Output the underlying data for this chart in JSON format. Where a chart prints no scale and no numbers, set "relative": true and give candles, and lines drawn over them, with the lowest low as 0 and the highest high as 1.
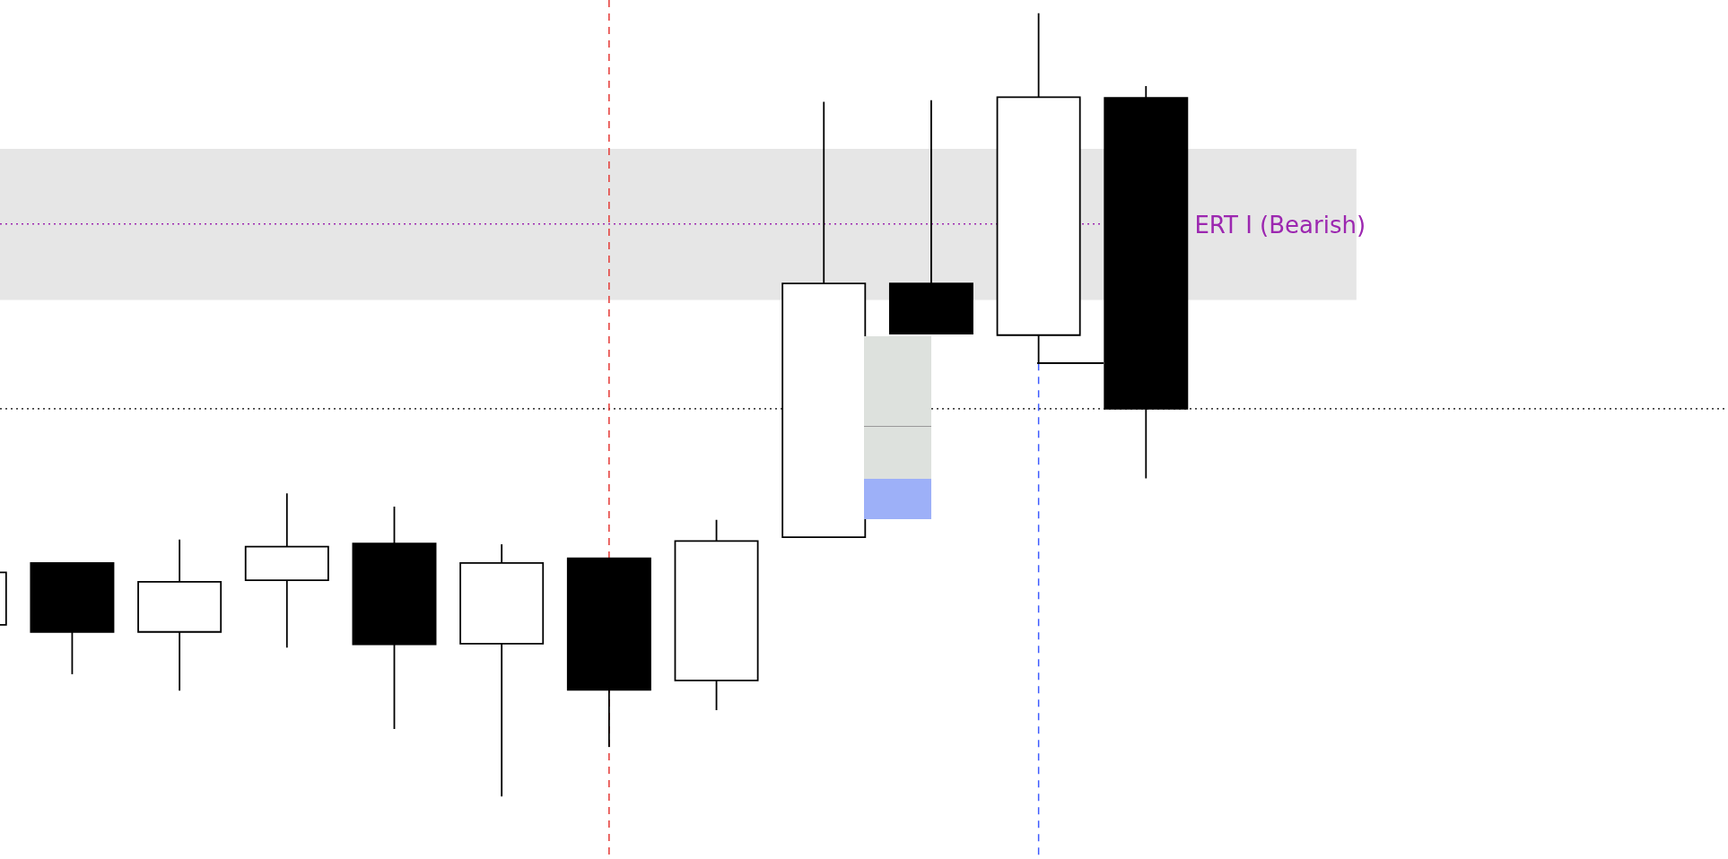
{
  "chart_data": {
    "type": "candlestick",
    "relative": true,
    "categories": [
      null,
      null,
      null,
      null,
      null,
      null,
      null,
      null,
      null,
      null,
      null,
      null,
      null,
      null,
      null,
      null,
      null
    ],
    "ohlc": [
      [
        0.219,
        0.286,
        0.219,
        0.286
      ],
      [
        0.298,
        0.298,
        0.156,
        0.21
      ],
      [
        0.21,
        0.328,
        0.135,
        0.274
      ],
      [
        0.276,
        0.387,
        0.19,
        0.319
      ],
      [
        0.323,
        0.37,
        0.086,
        0.194
      ],
      [
        0.195,
        0.322,
        0,
        0.298
      ],
      [
        0.304,
        0.304,
        0.063,
        0.136
      ],
      [
        0.148,
        0.353,
        0.11,
        0.326
      ],
      [
        0.331,
        0.887,
        0.331,
        0.655
      ],
      [
        0.655,
        0.889,
        0.591,
        0.591
      ],
      [
        0.589,
        1,
        0.553,
        0.893
      ],
      [
        0.892,
        0.907,
        0.406,
        0.495
      ],
      null,
      null,
      null,
      null,
      null
    ],
    "bands": [
      {
        "axis": "y",
        "from": 0.634,
        "to": 0.827,
        "color": "#e6e6e6"
      }
    ],
    "ref_lines": [
      {
        "axis": "y",
        "value": 0.731,
        "label": "ERT I (Bearish)",
        "color": "#9c27b0",
        "line_style": "dotted"
      },
      {
        "axis": "y",
        "value": 0.495,
        "color": "#000000",
        "line_style": "dotted"
      }
    ]
  }
}
